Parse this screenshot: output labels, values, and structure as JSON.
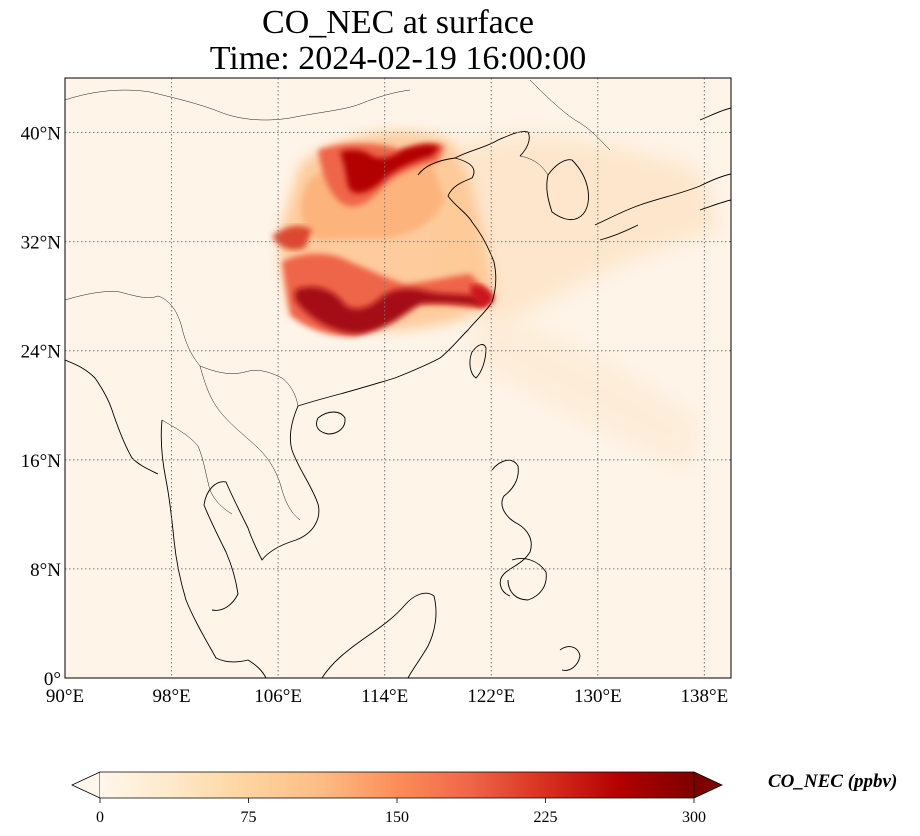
{
  "figure": {
    "title_line1": "CO_NEC at surface",
    "title_line2": "Time: 2024-02-19 16:00:00",
    "colorbar_label": "CO_NEC (ppbv)"
  },
  "map": {
    "extent": {
      "lon_min": 90,
      "lon_max": 140,
      "lat_min": 0,
      "lat_max": 44
    },
    "gridlines": true,
    "gridline_style": "dotted",
    "land_color": "#fef4e8",
    "lon_ticks": [
      {
        "value": 90,
        "label": "90°E"
      },
      {
        "value": 98,
        "label": "98°E"
      },
      {
        "value": 106,
        "label": "106°E"
      },
      {
        "value": 114,
        "label": "114°E"
      },
      {
        "value": 122,
        "label": "122°E"
      },
      {
        "value": 130,
        "label": "130°E"
      },
      {
        "value": 138,
        "label": "138°E"
      }
    ],
    "lat_ticks": [
      {
        "value": 0,
        "label": "0°"
      },
      {
        "value": 8,
        "label": "8°N"
      },
      {
        "value": 16,
        "label": "16°N"
      },
      {
        "value": 24,
        "label": "24°N"
      },
      {
        "value": 32,
        "label": "32°N"
      },
      {
        "value": 40,
        "label": "40°N"
      }
    ]
  },
  "colorbar": {
    "colormap": "OrRd",
    "min": 0,
    "max": 300,
    "extend": "both",
    "ticks": [
      {
        "value": 0,
        "label": "0"
      },
      {
        "value": 75,
        "label": "75"
      },
      {
        "value": 150,
        "label": "150"
      },
      {
        "value": 225,
        "label": "225"
      },
      {
        "value": 300,
        "label": "300"
      }
    ],
    "colors": [
      "#fff7ec",
      "#fee8c8",
      "#fdd49e",
      "#fdbb84",
      "#fc8d59",
      "#ef6548",
      "#d7301f",
      "#b30000",
      "#7f0000"
    ]
  }
}
